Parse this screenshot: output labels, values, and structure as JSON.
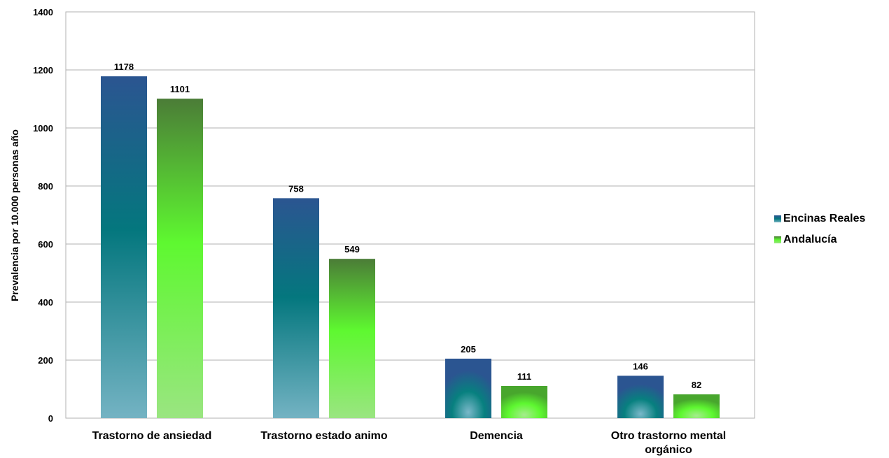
{
  "chart_data": {
    "type": "bar",
    "title": "",
    "xlabel": "",
    "ylabel": "Prevalencia por 10.000 personas año",
    "ylim": [
      0,
      1400
    ],
    "yticks": [
      0,
      200,
      400,
      600,
      800,
      1000,
      1200,
      1400
    ],
    "grid": true,
    "legend_position": "right",
    "categories": [
      [
        "Trastorno de ansiedad"
      ],
      [
        "Trastorno estado animo"
      ],
      [
        "Demencia"
      ],
      [
        "Otro trastorno mental",
        "orgánico"
      ]
    ],
    "series": [
      {
        "name": "Encinas Reales",
        "values": [
          1178,
          758,
          205,
          146
        ],
        "color": "#1f6f8b"
      },
      {
        "name": "Andalucía",
        "values": [
          1101,
          549,
          111,
          82
        ],
        "color": "#55ee33"
      }
    ]
  }
}
